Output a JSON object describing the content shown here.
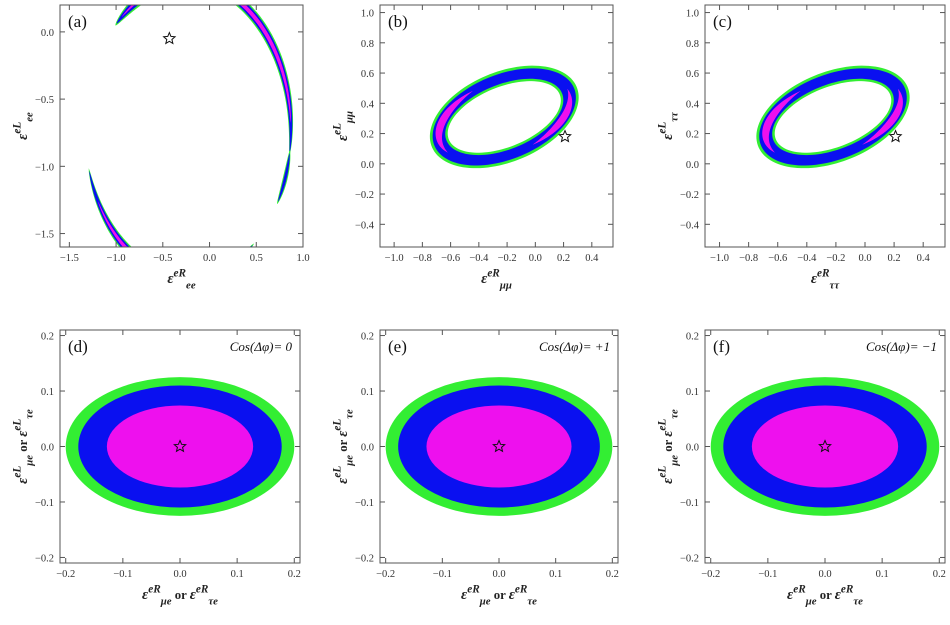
{
  "colors": {
    "green": "#33ee33",
    "blue": "#0a10f0",
    "magenta": "#ee10ee",
    "frame": "#555555"
  },
  "chart_data": [
    {
      "type": "contour",
      "panel_label": "(a)",
      "xlabel": {
        "main": "ε",
        "sup": "eR",
        "sub": "ee"
      },
      "ylabel": {
        "main": "ε",
        "sup": "eL",
        "sub": "ee"
      },
      "xlim": [
        -1.6,
        1.0
      ],
      "ylim": [
        -1.6,
        0.2
      ],
      "xticks": [
        -1.5,
        -1.0,
        -0.5,
        0.0,
        0.5,
        1.0
      ],
      "xtick_labels": [
        "−1.5",
        "−1.0",
        "−0.5",
        "0.0",
        "0.5",
        "1.0"
      ],
      "yticks": [
        -1.5,
        -1.0,
        -0.5,
        0.0
      ],
      "ytick_labels": [
        "−1.5",
        "−1.0",
        "−0.5",
        "0.0"
      ],
      "regions": [
        {
          "kind": "ring-arc",
          "cx": -0.23,
          "cy": -0.73,
          "r": 1.1,
          "from_deg": 95,
          "to_deg": 135,
          "width": [
            0.09,
            0.06,
            0.02
          ]
        },
        {
          "kind": "ring-arc",
          "cx": -0.23,
          "cy": -0.73,
          "r": 1.1,
          "from_deg": -10,
          "to_deg": 96,
          "width": [
            0.09,
            0.065,
            0.035
          ]
        },
        {
          "kind": "ring-arc",
          "cx": -0.23,
          "cy": -0.73,
          "r": 1.1,
          "from_deg": -30,
          "to_deg": -8,
          "width": [
            0.05,
            0.03,
            0.0
          ]
        },
        {
          "kind": "ring-arc",
          "cx": -0.23,
          "cy": -0.73,
          "r": 1.1,
          "from_deg": 195,
          "to_deg": 310,
          "width": [
            0.09,
            0.065,
            0.035
          ]
        }
      ],
      "best_fit": [
        -0.43,
        -0.05
      ]
    },
    {
      "type": "contour",
      "panel_label": "(b)",
      "xlabel": {
        "main": "ε",
        "sup": "eR",
        "sub": "μμ"
      },
      "ylabel": {
        "main": "ε",
        "sup": "eL",
        "sub": "μμ"
      },
      "xlim": [
        -1.1,
        0.55
      ],
      "ylim": [
        -0.55,
        1.05
      ],
      "xticks": [
        -1.0,
        -0.8,
        -0.6,
        -0.4,
        -0.2,
        0.0,
        0.2,
        0.4
      ],
      "xtick_labels": [
        "−1.0",
        "−0.8",
        "−0.6",
        "−0.4",
        "−0.2",
        "0.0",
        "0.2",
        "0.4"
      ],
      "yticks": [
        -0.4,
        -0.2,
        0.0,
        0.2,
        0.4,
        0.6,
        0.8,
        1.0
      ],
      "ytick_labels": [
        "−0.4",
        "−0.2",
        "0.0",
        "0.2",
        "0.4",
        "0.6",
        "0.8",
        "1.0"
      ],
      "regions": [
        {
          "kind": "tilted-annulus",
          "cx": -0.22,
          "cy": 0.31,
          "rx_out": 0.55,
          "ry_out": 0.3,
          "rx_in": 0.42,
          "ry_in": 0.2,
          "tilt_deg": 20
        }
      ],
      "best_fit": [
        0.21,
        0.18
      ]
    },
    {
      "type": "contour",
      "panel_label": "(c)",
      "xlabel": {
        "main": "ε",
        "sup": "eR",
        "sub": "ττ"
      },
      "ylabel": {
        "main": "ε",
        "sup": "eL",
        "sub": "ττ"
      },
      "xlim": [
        -1.1,
        0.55
      ],
      "ylim": [
        -0.55,
        1.05
      ],
      "xticks": [
        -1.0,
        -0.8,
        -0.6,
        -0.4,
        -0.2,
        0.0,
        0.2,
        0.4
      ],
      "xtick_labels": [
        "−1.0",
        "−0.8",
        "−0.6",
        "−0.4",
        "−0.2",
        "0.0",
        "0.2",
        "0.4"
      ],
      "yticks": [
        -0.4,
        -0.2,
        0.0,
        0.2,
        0.4,
        0.6,
        0.8,
        1.0
      ],
      "ytick_labels": [
        "−0.4",
        "−0.2",
        "0.0",
        "0.2",
        "0.4",
        "0.6",
        "0.8",
        "1.0"
      ],
      "regions": [
        {
          "kind": "tilted-annulus",
          "cx": -0.22,
          "cy": 0.31,
          "rx_out": 0.55,
          "ry_out": 0.3,
          "rx_in": 0.42,
          "ry_in": 0.2,
          "tilt_deg": 20
        }
      ],
      "best_fit": [
        0.21,
        0.18
      ]
    },
    {
      "type": "contour",
      "panel_label": "(d)",
      "annotation": "Cos(Δφ)= 0",
      "xlabel": {
        "main": "ε",
        "sup": "eR",
        "sub": "μe",
        "or": "or",
        "main2": "ε",
        "sup2": "eR",
        "sub2": "τe"
      },
      "ylabel": {
        "main": "ε",
        "sup": "eL",
        "sub": "μe",
        "or": "or",
        "main2": "ε",
        "sup2": "eL",
        "sub2": "τe"
      },
      "xlim": [
        -0.21,
        0.21
      ],
      "ylim": [
        -0.21,
        0.21
      ],
      "xticks": [
        -0.2,
        -0.1,
        0.0,
        0.1,
        0.2
      ],
      "xtick_labels": [
        "−0.2",
        "−0.1",
        "0.0",
        "0.1",
        "0.2"
      ],
      "yticks": [
        -0.2,
        -0.1,
        0.0,
        0.1,
        0.2
      ],
      "ytick_labels": [
        "−0.2",
        "−0.1",
        "0.0",
        "0.1",
        "0.2"
      ],
      "regions": [
        {
          "kind": "ellipse",
          "level": "green",
          "cx": 0.0,
          "cy": 0.0,
          "rx": 0.2,
          "ry": 0.125
        },
        {
          "kind": "ellipse",
          "level": "blue",
          "cx": 0.0,
          "cy": 0.0,
          "rx": 0.178,
          "ry": 0.11
        },
        {
          "kind": "ellipse",
          "level": "magenta",
          "cx": 0.0,
          "cy": 0.0,
          "rx": 0.128,
          "ry": 0.074
        }
      ],
      "best_fit": [
        0.0,
        0.0
      ]
    },
    {
      "type": "contour",
      "panel_label": "(e)",
      "annotation": "Cos(Δφ)= +1",
      "xlabel": {
        "main": "ε",
        "sup": "eR",
        "sub": "μe",
        "or": "or",
        "main2": "ε",
        "sup2": "eR",
        "sub2": "τe"
      },
      "ylabel": {
        "main": "ε",
        "sup": "eL",
        "sub": "μe",
        "or": "or",
        "main2": "ε",
        "sup2": "eL",
        "sub2": "τe"
      },
      "xlim": [
        -0.21,
        0.21
      ],
      "ylim": [
        -0.21,
        0.21
      ],
      "xticks": [
        -0.2,
        -0.1,
        0.0,
        0.1,
        0.2
      ],
      "xtick_labels": [
        "−0.2",
        "−0.1",
        "0.0",
        "0.1",
        "0.2"
      ],
      "yticks": [
        -0.2,
        -0.1,
        0.0,
        0.1,
        0.2
      ],
      "ytick_labels": [
        "−0.2",
        "−0.1",
        "0.0",
        "0.1",
        "0.2"
      ],
      "regions": [
        {
          "kind": "ellipse",
          "level": "green",
          "cx": 0.0,
          "cy": 0.0,
          "rx": 0.2,
          "ry": 0.125
        },
        {
          "kind": "ellipse",
          "level": "blue",
          "cx": 0.0,
          "cy": 0.0,
          "rx": 0.178,
          "ry": 0.11
        },
        {
          "kind": "ellipse",
          "level": "magenta",
          "cx": 0.0,
          "cy": 0.0,
          "rx": 0.128,
          "ry": 0.074
        }
      ],
      "best_fit": [
        0.0,
        0.0
      ]
    },
    {
      "type": "contour",
      "panel_label": "(f)",
      "annotation": "Cos(Δφ)= −1",
      "xlabel": {
        "main": "ε",
        "sup": "eR",
        "sub": "μe",
        "or": "or",
        "main2": "ε",
        "sup2": "eR",
        "sub2": "τe"
      },
      "ylabel": {
        "main": "ε",
        "sup": "eL",
        "sub": "μe",
        "or": "or",
        "main2": "ε",
        "sup2": "eL",
        "sub2": "τe"
      },
      "xlim": [
        -0.21,
        0.21
      ],
      "ylim": [
        -0.21,
        0.21
      ],
      "xticks": [
        -0.2,
        -0.1,
        0.0,
        0.1,
        0.2
      ],
      "xtick_labels": [
        "−0.2",
        "−0.1",
        "0.0",
        "0.1",
        "0.2"
      ],
      "yticks": [
        -0.2,
        -0.1,
        0.0,
        0.1,
        0.2
      ],
      "ytick_labels": [
        "−0.2",
        "−0.1",
        "0.0",
        "0.1",
        "0.2"
      ],
      "regions": [
        {
          "kind": "ellipse",
          "level": "green",
          "cx": 0.0,
          "cy": 0.0,
          "rx": 0.2,
          "ry": 0.125
        },
        {
          "kind": "ellipse",
          "level": "blue",
          "cx": 0.0,
          "cy": 0.0,
          "rx": 0.178,
          "ry": 0.11
        },
        {
          "kind": "ellipse",
          "level": "magenta",
          "cx": 0.0,
          "cy": 0.0,
          "rx": 0.128,
          "ry": 0.074
        }
      ],
      "best_fit": [
        0.0,
        0.0
      ]
    }
  ]
}
